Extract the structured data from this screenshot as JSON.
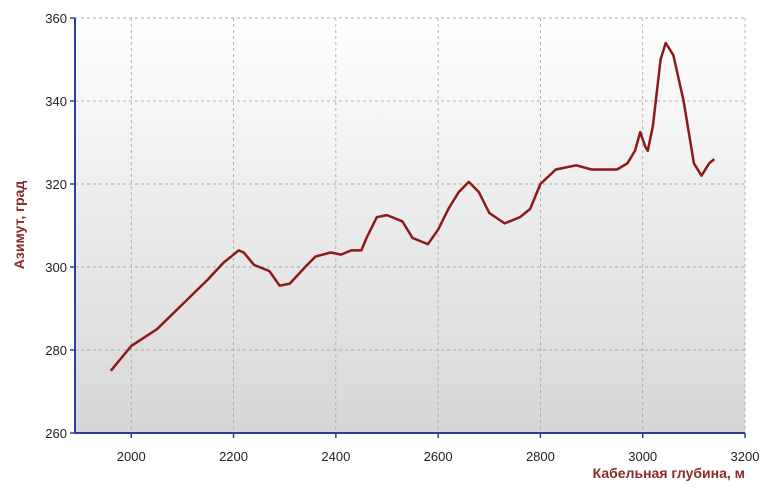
{
  "chart_data": {
    "type": "line",
    "xlabel": "Кабельная глубина, м",
    "ylabel": "Азимут, град",
    "xlim": [
      1890,
      3200
    ],
    "xticks": [
      2000,
      2200,
      2400,
      2600,
      2800,
      3000,
      3200
    ],
    "ylim": [
      260,
      360
    ],
    "yticks": [
      260,
      280,
      300,
      320,
      340,
      360
    ],
    "grid": true,
    "series": [
      {
        "name": "Азимут",
        "color": "#8b1a1a",
        "x": [
          1960,
          2000,
          2050,
          2100,
          2150,
          2180,
          2210,
          2220,
          2240,
          2270,
          2290,
          2310,
          2340,
          2360,
          2390,
          2410,
          2430,
          2450,
          2460,
          2480,
          2500,
          2530,
          2550,
          2580,
          2600,
          2620,
          2640,
          2660,
          2680,
          2700,
          2730,
          2760,
          2780,
          2800,
          2830,
          2870,
          2900,
          2950,
          2970,
          2985,
          2995,
          3005,
          3010,
          3020,
          3035,
          3045,
          3060,
          3080,
          3100,
          3115,
          3130,
          3140
        ],
        "values": [
          275,
          281,
          285,
          291,
          297,
          301,
          304,
          303.5,
          300.5,
          299,
          295.5,
          296,
          300,
          302.5,
          303.5,
          303,
          304,
          304,
          307,
          312,
          312.5,
          311,
          307,
          305.5,
          309,
          314,
          318,
          320.5,
          318,
          313,
          310.5,
          312,
          314,
          320,
          323.5,
          324.5,
          323.5,
          323.5,
          325,
          328,
          332.5,
          329,
          328,
          334,
          350,
          354,
          351,
          340,
          325,
          322,
          325,
          326
        ]
      }
    ]
  }
}
